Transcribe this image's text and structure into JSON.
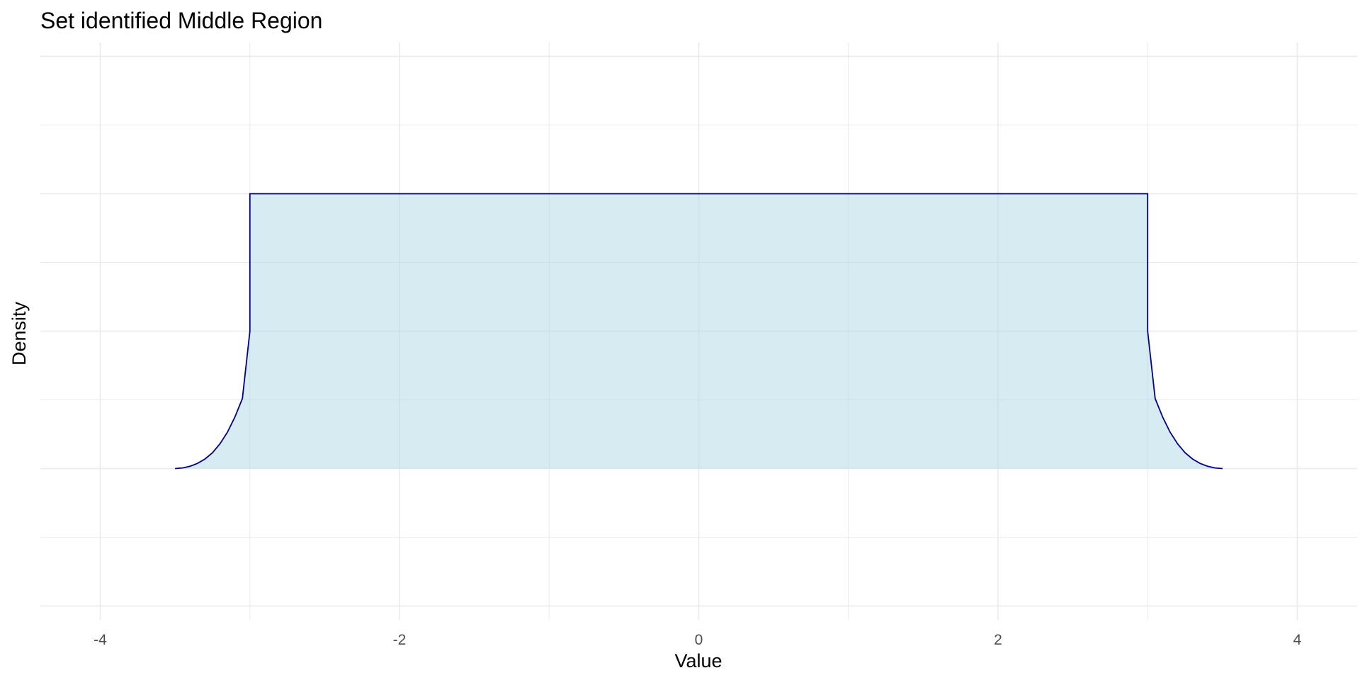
{
  "chart_data": {
    "type": "area",
    "title": "Set identified Middle Region",
    "xlabel": "Value",
    "ylabel": "Density",
    "xlim": [
      -4.4,
      4.4
    ],
    "ylim": [
      -1.1,
      3.1
    ],
    "x_ticks": [
      -4,
      -2,
      0,
      2,
      4
    ],
    "x_tick_labels": [
      "-4",
      "-2",
      "0",
      "2",
      "4"
    ],
    "y_ticks": [
      -1,
      0,
      1,
      2,
      3
    ],
    "y_tick_labels": [],
    "grid": true,
    "legend": "none",
    "series": [
      {
        "x": [
          -3.5,
          -3.45,
          -3.4,
          -3.35,
          -3.3,
          -3.25,
          -3.2,
          -3.15,
          -3.1,
          -3.05,
          -3.0,
          -3.0,
          3.0,
          3.0,
          3.05,
          3.1,
          3.15,
          3.2,
          3.25,
          3.3,
          3.35,
          3.4,
          3.45,
          3.5
        ],
        "y": [
          0.0,
          0.005,
          0.017,
          0.038,
          0.07,
          0.115,
          0.18,
          0.265,
          0.375,
          0.51,
          1.0,
          2.0,
          2.0,
          1.0,
          0.51,
          0.375,
          0.265,
          0.18,
          0.115,
          0.07,
          0.038,
          0.017,
          0.005,
          0.0
        ]
      }
    ],
    "colors": {
      "fill": "#add8e6",
      "line": "#00008b",
      "grid": "#ebebeb"
    }
  }
}
